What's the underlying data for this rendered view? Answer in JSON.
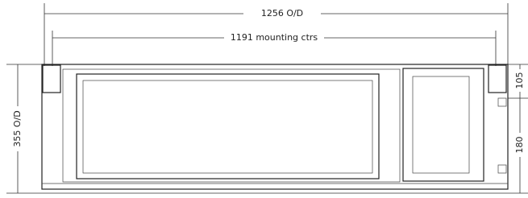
{
  "dimensions": [
    {
      "label": "1256 O/D"
    },
    {
      "label": "1191 mounting ctrs"
    },
    {
      "label": "105"
    },
    {
      "label": "180"
    },
    {
      "label": "355 O/D"
    }
  ]
}
